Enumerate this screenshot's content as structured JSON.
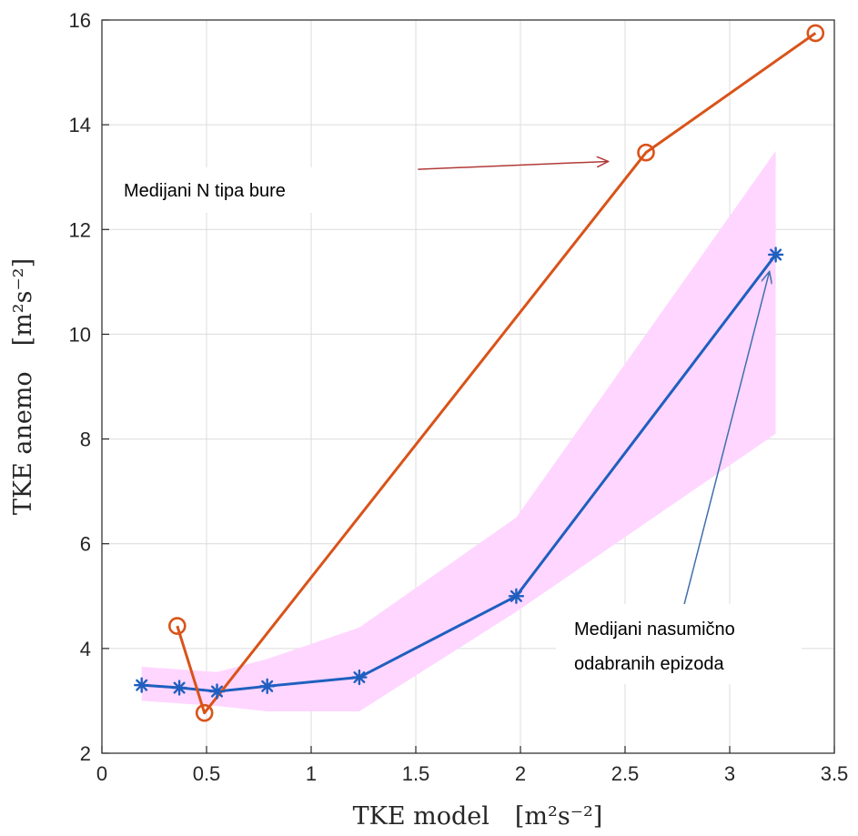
{
  "chart_data": {
    "type": "line",
    "xlabel": "TKE model",
    "xlabel_unit": "[m²s⁻²]",
    "ylabel": "TKE anemo",
    "ylabel_unit": "[m²s⁻²]",
    "xlim": [
      0,
      3.5
    ],
    "ylim": [
      2,
      16
    ],
    "xticks": [
      0,
      0.5,
      1,
      1.5,
      2,
      2.5,
      3,
      3.5
    ],
    "xtick_labels": [
      "0",
      "0.5",
      "1",
      "1.5",
      "2",
      "2.5",
      "3",
      "3.5"
    ],
    "yticks": [
      2,
      4,
      6,
      8,
      10,
      12,
      14,
      16
    ],
    "ytick_labels": [
      "2",
      "4",
      "6",
      "8",
      "10",
      "12",
      "14",
      "16"
    ],
    "grid": true,
    "series": [
      {
        "marker": "asterisk",
        "color": "#1f5fbf",
        "x": [
          0.19,
          0.37,
          0.55,
          0.79,
          1.23,
          1.98,
          3.22
        ],
        "y": [
          3.3,
          3.25,
          3.18,
          3.28,
          3.45,
          5.0,
          11.52
        ]
      },
      {
        "marker": "circle",
        "color": "#d95319",
        "x": [
          0.36,
          0.49,
          2.6,
          3.41
        ],
        "y": [
          4.43,
          2.77,
          13.47,
          15.75
        ]
      }
    ],
    "band": {
      "color": "#ffd6ff",
      "x": [
        0.19,
        0.37,
        0.55,
        0.79,
        1.23,
        1.98,
        3.22
      ],
      "upper": [
        3.65,
        3.6,
        3.55,
        3.8,
        4.4,
        6.5,
        13.5
      ],
      "lower": [
        3.0,
        2.95,
        2.9,
        2.8,
        2.8,
        4.7,
        8.1
      ]
    },
    "annotations": [
      {
        "text": "Medijani N tipa bure",
        "arrow_color": "#b03a3a",
        "arrow_from": [
          1.51,
          13.15
        ],
        "arrow_to": [
          2.42,
          13.3
        ]
      },
      {
        "text": "Medijani nasumično",
        "text2": "odabranih epizoda",
        "arrow_color": "#3f6fae",
        "arrow_from": [
          2.78,
          4.8
        ],
        "arrow_to": [
          3.19,
          11.2
        ]
      }
    ]
  }
}
